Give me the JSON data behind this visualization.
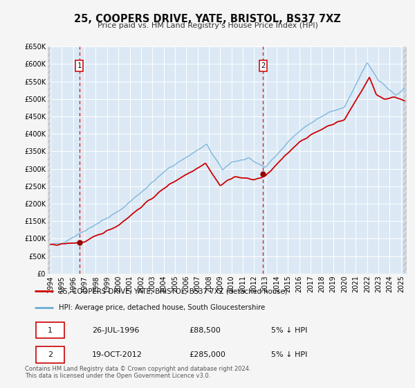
{
  "title": "25, COOPERS DRIVE, YATE, BRISTOL, BS37 7XZ",
  "subtitle": "Price paid vs. HM Land Registry's House Price Index (HPI)",
  "ylim": [
    0,
    650000
  ],
  "xlim_start": 1993.75,
  "xlim_end": 2025.5,
  "yticks": [
    0,
    50000,
    100000,
    150000,
    200000,
    250000,
    300000,
    350000,
    400000,
    450000,
    500000,
    550000,
    600000,
    650000
  ],
  "ytick_labels": [
    "£0",
    "£50K",
    "£100K",
    "£150K",
    "£200K",
    "£250K",
    "£300K",
    "£350K",
    "£400K",
    "£450K",
    "£500K",
    "£550K",
    "£600K",
    "£650K"
  ],
  "xtick_years": [
    1994,
    1995,
    1996,
    1997,
    1998,
    1999,
    2000,
    2001,
    2002,
    2003,
    2004,
    2005,
    2006,
    2007,
    2008,
    2009,
    2010,
    2011,
    2012,
    2013,
    2014,
    2015,
    2016,
    2017,
    2018,
    2019,
    2020,
    2021,
    2022,
    2023,
    2024,
    2025
  ],
  "sale1_x": 1996.55,
  "sale1_y": 88500,
  "sale2_x": 2012.8,
  "sale2_y": 285000,
  "hpi_color": "#6baed6",
  "hpi_fill_color": "#c6dbef",
  "price_color": "#cc0000",
  "dot_color": "#990000",
  "legend_label1": "25, COOPERS DRIVE, YATE, BRISTOL, BS37 7XZ (detached house)",
  "legend_label2": "HPI: Average price, detached house, South Gloucestershire",
  "table_row1": [
    "1",
    "26-JUL-1996",
    "£88,500",
    "5% ↓ HPI"
  ],
  "table_row2": [
    "2",
    "19-OCT-2012",
    "£285,000",
    "5% ↓ HPI"
  ],
  "footer_line1": "Contains HM Land Registry data © Crown copyright and database right 2024.",
  "footer_line2": "This data is licensed under the Open Government Licence v3.0.",
  "bg_color": "#dce9f5",
  "grid_color": "#ffffff",
  "fig_bg": "#f5f5f5"
}
